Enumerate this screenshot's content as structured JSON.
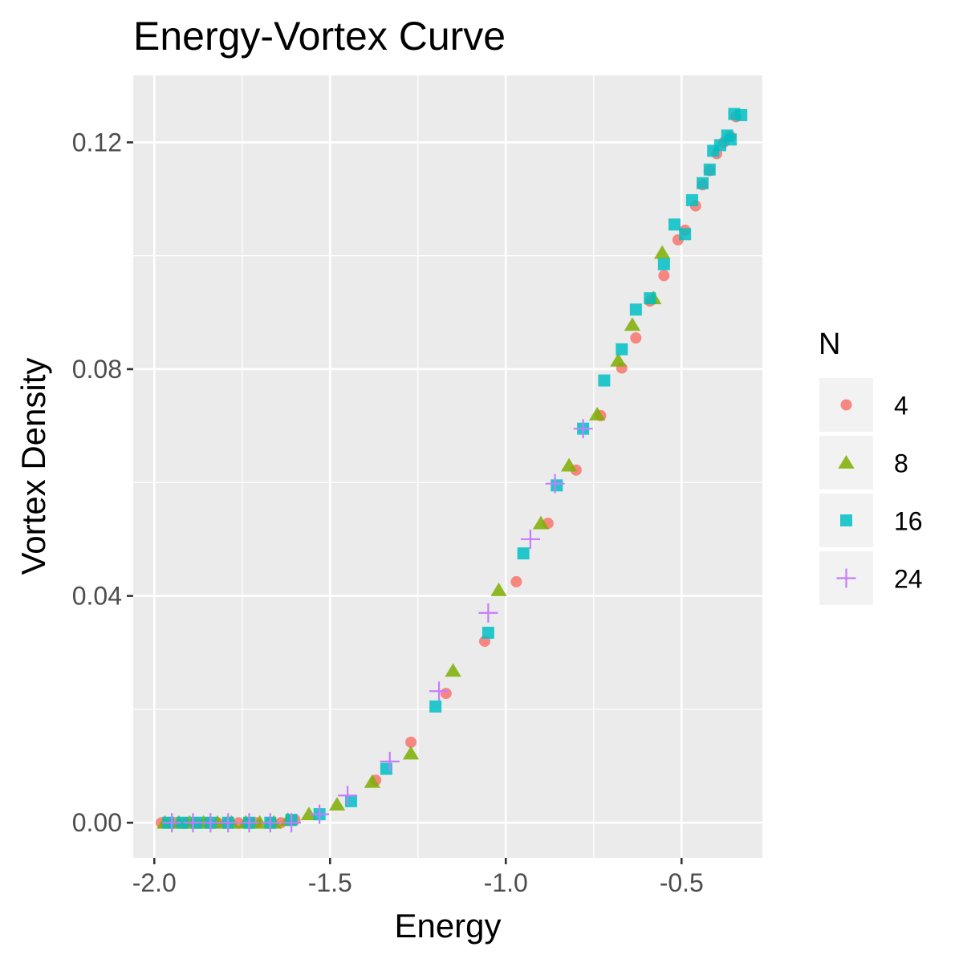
{
  "chart_data": {
    "type": "scatter",
    "title": "Energy-Vortex Curve",
    "xlabel": "Energy",
    "ylabel": "Vortex Density",
    "xlim": [
      -2.06,
      -0.27
    ],
    "ylim": [
      -0.0062,
      0.1318
    ],
    "x_ticks": [
      -2.0,
      -1.5,
      -1.0,
      -0.5
    ],
    "x_tick_labels": [
      "-2.0",
      "-1.5",
      "-1.0",
      "-0.5"
    ],
    "y_ticks": [
      0.0,
      0.04,
      0.08,
      0.12
    ],
    "y_tick_labels": [
      "0.00",
      "0.04",
      "0.08",
      "0.12"
    ],
    "grid": true,
    "legend": {
      "title": "N",
      "position": "right"
    },
    "colors": {
      "panel_bg": "#ebebeb",
      "grid": "#ffffff",
      "legend_key_bg": "#f2f2f2"
    },
    "series": [
      {
        "name": "4",
        "color": "#f8766d",
        "shape": "circle",
        "x": [
          -1.98,
          -1.96,
          -1.94,
          -1.91,
          -1.88,
          -1.85,
          -1.82,
          -1.79,
          -1.76,
          -1.73,
          -1.71,
          -1.67,
          -1.64,
          -1.6,
          -1.37,
          -1.27,
          -1.17,
          -1.06,
          -0.97,
          -0.88,
          -0.8,
          -0.73,
          -0.67,
          -0.63,
          -0.59,
          -0.55,
          -0.51,
          -0.49,
          -0.46,
          -0.44,
          -0.42,
          -0.4,
          -0.38,
          -0.36,
          -0.345
        ],
        "y": [
          0.0,
          0.0,
          0.0,
          0.0,
          0.0,
          0.0,
          0.0,
          0.0,
          0.0,
          0.0,
          0.0,
          0.0,
          0.0,
          0.0005,
          0.0075,
          0.0142,
          0.0228,
          0.032,
          0.0425,
          0.0528,
          0.0622,
          0.0718,
          0.0802,
          0.0855,
          0.092,
          0.0965,
          0.1028,
          0.1045,
          0.1088,
          0.1125,
          0.115,
          0.118,
          0.12,
          0.121,
          0.1245
        ]
      },
      {
        "name": "8",
        "color": "#7cae00",
        "shape": "triangle",
        "x": [
          -1.97,
          -1.93,
          -1.9,
          -1.86,
          -1.82,
          -1.78,
          -1.74,
          -1.7,
          -1.66,
          -1.62,
          -1.56,
          -1.48,
          -1.38,
          -1.27,
          -1.15,
          -1.02,
          -0.9,
          -0.82,
          -0.74,
          -0.68,
          -0.64,
          -0.58,
          -0.555
        ],
        "y": [
          0.0,
          0.0,
          0.0,
          0.0,
          0.0,
          0.0,
          0.0,
          0.0,
          0.0,
          0.0005,
          0.0015,
          0.0032,
          0.0072,
          0.0122,
          0.0268,
          0.041,
          0.0528,
          0.063,
          0.072,
          0.0815,
          0.0878,
          0.0925,
          0.1005
        ]
      },
      {
        "name": "16",
        "color": "#00bfc4",
        "shape": "square",
        "x": [
          -1.96,
          -1.92,
          -1.88,
          -1.84,
          -1.79,
          -1.73,
          -1.67,
          -1.61,
          -1.53,
          -1.44,
          -1.34,
          -1.2,
          -1.05,
          -0.95,
          -0.855,
          -0.78,
          -0.72,
          -0.67,
          -0.63,
          -0.59,
          -0.55,
          -0.52,
          -0.49,
          -0.47,
          -0.44,
          -0.42,
          -0.41,
          -0.39,
          -0.37,
          -0.36,
          -0.35,
          -0.33
        ],
        "y": [
          0.0,
          0.0,
          0.0,
          0.0,
          0.0,
          0.0,
          0.0,
          0.0005,
          0.0015,
          0.0038,
          0.0095,
          0.0205,
          0.0335,
          0.0475,
          0.0595,
          0.0695,
          0.078,
          0.0835,
          0.0905,
          0.0925,
          0.0985,
          0.1055,
          0.1038,
          0.1098,
          0.1128,
          0.1152,
          0.1185,
          0.1195,
          0.1212,
          0.1205,
          0.125,
          0.1248
        ]
      },
      {
        "name": "24",
        "color": "#c77cff",
        "shape": "plus",
        "x": [
          -1.95,
          -1.89,
          -1.84,
          -1.79,
          -1.73,
          -1.67,
          -1.61,
          -1.53,
          -1.45,
          -1.33,
          -1.19,
          -1.05,
          -0.93,
          -0.86,
          -0.78
        ],
        "y": [
          0.0,
          0.0,
          0.0,
          0.0,
          0.0,
          0.0,
          0.0,
          0.0015,
          0.0048,
          0.0108,
          0.0232,
          0.037,
          0.05,
          0.0598,
          0.0695
        ]
      }
    ]
  }
}
